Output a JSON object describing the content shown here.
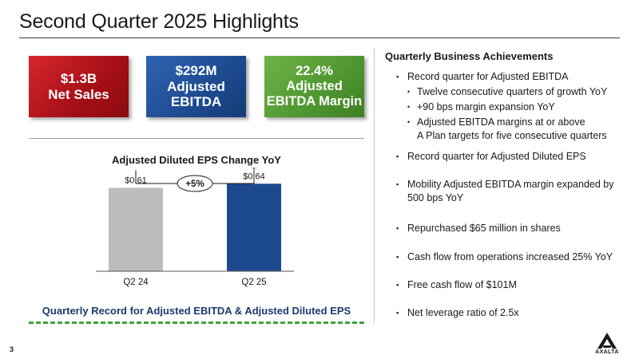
{
  "title": "Second Quarter 2025 Highlights",
  "kpis": {
    "net_sales": {
      "line1": "$1.3B",
      "line2": "Net Sales",
      "color": "#b5151c"
    },
    "ebitda": {
      "line1": "$292M",
      "line2": "Adjusted",
      "line3": "EBITDA",
      "color": "#1d4a8f"
    },
    "margin": {
      "line1": "22.4%",
      "line2": "Adjusted",
      "line3": "EBITDA Margin",
      "color": "#4e9630"
    }
  },
  "chart_data": {
    "type": "bar",
    "title": "Adjusted Diluted EPS Change YoY",
    "categories": [
      "Q2 24",
      "Q2 25"
    ],
    "values": [
      0.61,
      0.64
    ],
    "value_labels": [
      "$0.61",
      "$0.64"
    ],
    "bar_colors": [
      "#bdbdbd",
      "#1d4a8f"
    ],
    "change_label": "+5%",
    "ylim": [
      0,
      0.7
    ]
  },
  "record_text": "Quarterly Record for Adjusted EBITDA & Adjusted Diluted EPS",
  "achievements": {
    "heading": "Quarterly Business Achievements",
    "b1": "Record quarter for Adjusted EBITDA",
    "b1_sub1": "Twelve consecutive quarters of growth YoY",
    "b1_sub2": "+90 bps margin expansion YoY",
    "b1_sub3a": "Adjusted EBITDA margins at or above",
    "b1_sub3b": "A Plan targets for five consecutive quarters",
    "b2": "Record quarter for Adjusted Diluted EPS",
    "b3a": "Mobility Adjusted EBITDA margin expanded by",
    "b3b": "500 bps YoY",
    "b4": "Repurchased $65 million in shares",
    "b5": "Cash flow from operations increased 25% YoY",
    "b6": "Free cash flow of $101M",
    "b7": "Net leverage ratio of 2.5x"
  },
  "page_number": "3",
  "logo_text": "AXALTA"
}
